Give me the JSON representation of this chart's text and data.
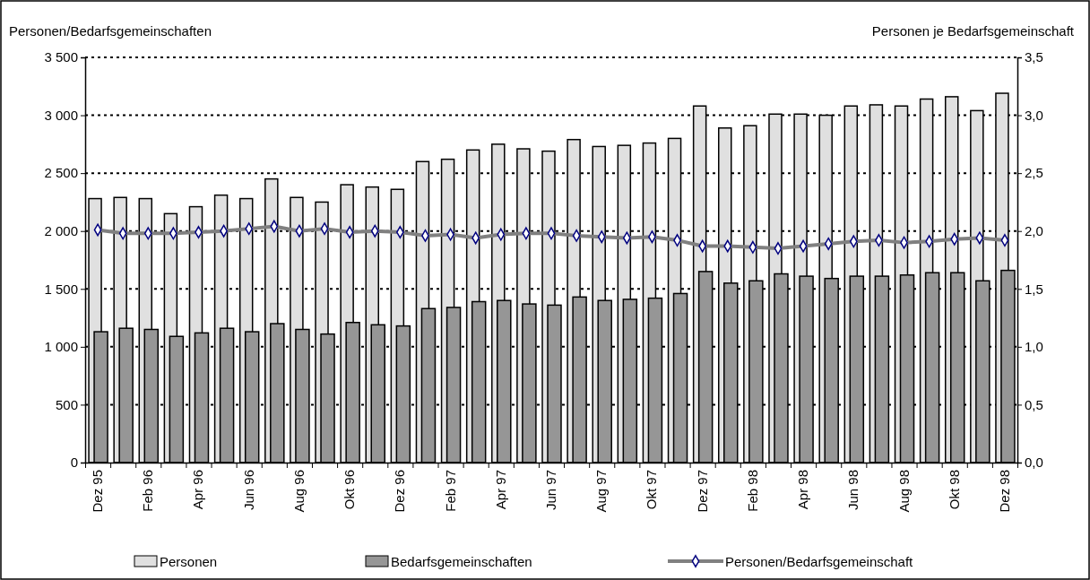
{
  "chart_data": {
    "type": "bar",
    "ylabel": "Personen/Bedarfsgemeinschaften",
    "y2label": "Personen je Bedarfsgemeinschaft",
    "categories": [
      "Dez 95",
      null,
      "Feb 96",
      null,
      "Apr 96",
      null,
      "Jun 96",
      null,
      "Aug 96",
      null,
      "Okt 96",
      null,
      "Dez 96",
      null,
      "Feb 97",
      null,
      "Apr 97",
      null,
      "Jun 97",
      null,
      "Aug 97",
      null,
      "Okt 97",
      null,
      "Dez 97",
      null,
      "Feb 98",
      null,
      "Apr 98",
      null,
      "Jun 98",
      null,
      "Aug 98",
      null,
      "Okt 98",
      null,
      "Dez 98"
    ],
    "series": [
      {
        "name": "Personen",
        "color": "#e0e0e0",
        "values": [
          2280,
          2290,
          2280,
          2150,
          2210,
          2310,
          2280,
          2450,
          2290,
          2250,
          2400,
          2380,
          2360,
          2600,
          2620,
          2700,
          2750,
          2710,
          2690,
          2790,
          2730,
          2740,
          2760,
          2800,
          3080,
          2890,
          2910,
          3010,
          3010,
          3000,
          3080,
          3090,
          3080,
          3140,
          3160,
          3040,
          3190
        ]
      },
      {
        "name": "Bedarfsgemeinschaften",
        "color": "#969696",
        "values": [
          1130,
          1160,
          1150,
          1090,
          1120,
          1160,
          1130,
          1200,
          1150,
          1110,
          1210,
          1190,
          1180,
          1330,
          1340,
          1390,
          1400,
          1370,
          1360,
          1430,
          1400,
          1410,
          1420,
          1460,
          1650,
          1550,
          1570,
          1630,
          1610,
          1590,
          1610,
          1610,
          1620,
          1640,
          1640,
          1570,
          1660
        ]
      },
      {
        "name": "Personen/Bedarfsgemeinschaft",
        "type": "line",
        "axis": "y2",
        "color": "#808080",
        "marker": "diamond",
        "values": [
          2.01,
          1.98,
          1.98,
          1.98,
          1.99,
          2.0,
          2.02,
          2.04,
          2.0,
          2.02,
          1.99,
          2.0,
          1.99,
          1.96,
          1.97,
          1.94,
          1.97,
          1.98,
          1.98,
          1.96,
          1.95,
          1.94,
          1.95,
          1.92,
          1.87,
          1.87,
          1.86,
          1.85,
          1.87,
          1.89,
          1.91,
          1.92,
          1.9,
          1.91,
          1.93,
          1.94,
          1.92
        ]
      }
    ],
    "ylim": [
      0,
      3500
    ],
    "yticks": [
      {
        "value": 0,
        "label": "0"
      },
      {
        "value": 500,
        "label": "500"
      },
      {
        "value": 1000,
        "label": "1 000"
      },
      {
        "value": 1500,
        "label": "1 500"
      },
      {
        "value": 2000,
        "label": "2 000"
      },
      {
        "value": 2500,
        "label": "2 500"
      },
      {
        "value": 3000,
        "label": "3 000"
      },
      {
        "value": 3500,
        "label": "3 500"
      }
    ],
    "y2lim": [
      0,
      3.5
    ],
    "y2ticks": [
      {
        "value": 0,
        "label": "0,0"
      },
      {
        "value": 0.5,
        "label": "0,5"
      },
      {
        "value": 1,
        "label": "1,0"
      },
      {
        "value": 1.5,
        "label": "1,5"
      },
      {
        "value": 2,
        "label": "2,0"
      },
      {
        "value": 2.5,
        "label": "2,5"
      },
      {
        "value": 3,
        "label": "3,0"
      },
      {
        "value": 3.5,
        "label": "3,5"
      }
    ],
    "grid": "y",
    "line_style": "solid",
    "legend": "bottom"
  }
}
